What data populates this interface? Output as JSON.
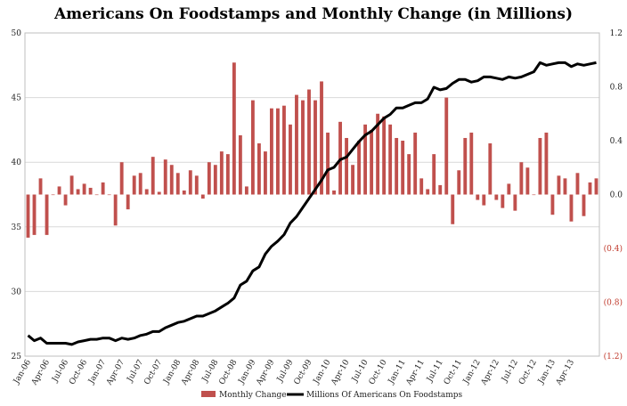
{
  "chart_data": {
    "type": "bar+line",
    "title": "Americans On Foodstamps and Monthly Change (in Millions)",
    "left_axis": {
      "ticks": [
        "50",
        "45",
        "40",
        "35",
        "30",
        "25"
      ],
      "ylim": [
        25,
        50
      ]
    },
    "right_axis": {
      "ticks": [
        "1.2",
        "0.8",
        "0.4",
        "0.0",
        "(0.4)",
        "(0.8)",
        "(1.2)"
      ],
      "ylim": [
        -1.2,
        1.2
      ]
    },
    "x_tick_labels": [
      "Jan-06",
      "Apr-06",
      "Jul-06",
      "Oct-06",
      "Jan-07",
      "Apr-07",
      "Jul-07",
      "Oct-07",
      "Jan-08",
      "Apr-08",
      "Jul-08",
      "Oct-08",
      "Jan-09",
      "Apr-09",
      "Jul-09",
      "Oct-09",
      "Jan-10",
      "Apr-10",
      "Jul-10",
      "Oct-10",
      "Jan-11",
      "Apr-11",
      "Jul-11",
      "Oct-11",
      "Jan-12",
      "Apr-12",
      "Jul-12",
      "Oct-12",
      "Jan-13",
      "Apr-13"
    ],
    "series": [
      {
        "name": "Monthly Change",
        "type": "bar",
        "axis": "right",
        "color": "#c0504d",
        "values": [
          -0.32,
          -0.3,
          0.12,
          -0.3,
          0.0,
          0.06,
          -0.08,
          0.14,
          0.04,
          0.08,
          0.05,
          0.0,
          0.09,
          0.0,
          -0.23,
          0.24,
          -0.11,
          0.14,
          0.16,
          0.04,
          0.28,
          0.02,
          0.26,
          0.22,
          0.16,
          0.03,
          0.18,
          0.14,
          -0.03,
          0.24,
          0.22,
          0.32,
          0.3,
          0.98,
          0.44,
          0.06,
          0.7,
          0.38,
          0.32,
          0.64,
          0.64,
          0.66,
          0.52,
          0.74,
          0.7,
          0.78,
          0.7,
          0.84,
          0.46,
          0.03,
          0.54,
          0.42,
          0.22,
          0.4,
          0.52,
          0.48,
          0.6,
          0.58,
          0.52,
          0.42,
          0.4,
          0.3,
          0.46,
          0.12,
          0.04,
          0.3,
          0.07,
          0.72,
          -0.22,
          0.18,
          0.42,
          0.46,
          -0.04,
          -0.08,
          0.38,
          -0.04,
          -0.1,
          0.08,
          -0.12,
          0.24,
          0.2,
          0.0,
          0.42,
          0.46,
          -0.15,
          0.14,
          0.12,
          -0.2,
          0.16,
          -0.16,
          0.09,
          0.12
        ]
      },
      {
        "name": "Millions Of Americans On Foodstamps",
        "type": "line",
        "axis": "left",
        "color": "#000000",
        "values": [
          26.6,
          26.2,
          26.4,
          26.0,
          26.0,
          26.0,
          26.0,
          25.9,
          26.1,
          26.2,
          26.3,
          26.3,
          26.4,
          26.4,
          26.2,
          26.4,
          26.3,
          26.4,
          26.6,
          26.7,
          26.9,
          26.9,
          27.2,
          27.4,
          27.6,
          27.7,
          27.9,
          28.1,
          28.1,
          28.3,
          28.5,
          28.8,
          29.1,
          29.5,
          30.5,
          30.8,
          31.6,
          31.9,
          32.9,
          33.5,
          33.9,
          34.4,
          35.3,
          35.8,
          36.5,
          37.2,
          37.9,
          38.6,
          39.4,
          39.6,
          40.2,
          40.4,
          41.0,
          41.6,
          42.1,
          42.4,
          42.9,
          43.4,
          43.7,
          44.2,
          44.2,
          44.4,
          44.6,
          44.6,
          44.9,
          45.8,
          45.6,
          45.7,
          46.1,
          46.4,
          46.4,
          46.2,
          46.3,
          46.6,
          46.6,
          46.5,
          46.4,
          46.6,
          46.5,
          46.6,
          46.8,
          47.0,
          47.7,
          47.5,
          47.6,
          47.7,
          47.7,
          47.4,
          47.6,
          47.5,
          47.6,
          47.7
        ]
      }
    ],
    "legend": [
      {
        "label": "Monthly Change",
        "color": "#c0504d",
        "kind": "bar"
      },
      {
        "label": "Millions Of Americans On Foodstamps",
        "color": "#000000",
        "kind": "line"
      }
    ],
    "legend_position": "bottom"
  }
}
